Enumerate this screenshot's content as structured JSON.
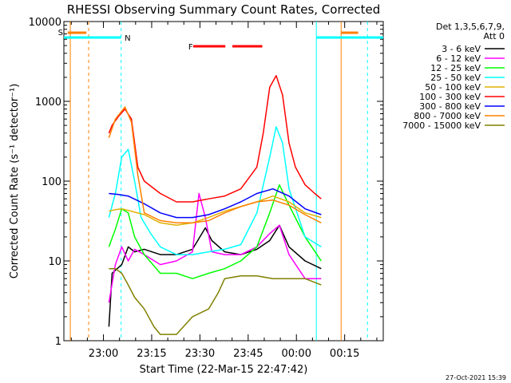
{
  "chart_data": {
    "type": "line",
    "title": "RHESSI Observing Summary Count Rates, Corrected",
    "xlabel": "Start Time (22-Mar-15 22:47:42)",
    "ylabel": "Corrected Count Rate (s⁻¹ detector⁻¹)",
    "y_scale": "log",
    "ylim": [
      1,
      10000
    ],
    "xlim": [
      "22:47:42",
      "00:27:00"
    ],
    "x_ticks": [
      "23:00",
      "23:15",
      "23:30",
      "23:45",
      "00:00",
      "00:15"
    ],
    "y_ticks": [
      "1",
      "10",
      "100",
      "1000",
      "10000"
    ],
    "x_tick_minutes": [
      12.3,
      27.3,
      42.3,
      57.3,
      72.3,
      87.3
    ],
    "legend": {
      "position": "right",
      "header": [
        "Det 1,3,5,6,7,9,",
        "Att 0"
      ],
      "entries": [
        {
          "name": "3 - 6 keV",
          "color": "#000000"
        },
        {
          "name": "6 - 12 keV",
          "color": "#ff00ff"
        },
        {
          "name": "12 - 25 keV",
          "color": "#00ff00"
        },
        {
          "name": "25 - 50 keV",
          "color": "#00ffff"
        },
        {
          "name": "50 - 100 keV",
          "color": "#e0b000"
        },
        {
          "name": "100 - 300 keV",
          "color": "#ff0000"
        },
        {
          "name": "300 - 800 keV",
          "color": "#0000ff"
        },
        {
          "name": "800 - 7000 keV",
          "color": "#ff8000"
        },
        {
          "name": "7000 - 15000 keV",
          "color": "#808000"
        }
      ]
    },
    "flags": [
      {
        "label": "S",
        "color": "#ff8000"
      },
      {
        "label": "N",
        "color": "#00ffff"
      },
      {
        "label": "F",
        "color": "#ff0000"
      }
    ],
    "series": [
      {
        "name": "3 - 6 keV",
        "color": "#000000",
        "points": [
          [
            14,
            1.5
          ],
          [
            15,
            7
          ],
          [
            18,
            9
          ],
          [
            20,
            15
          ],
          [
            22,
            13
          ],
          [
            25,
            14
          ],
          [
            30,
            12
          ],
          [
            35,
            12
          ],
          [
            40,
            14
          ],
          [
            44,
            26
          ],
          [
            46,
            18
          ],
          [
            50,
            13
          ],
          [
            55,
            12
          ],
          [
            60,
            14
          ],
          [
            64,
            18
          ],
          [
            67,
            28
          ],
          [
            70,
            15
          ],
          [
            75,
            10
          ],
          [
            80,
            8
          ]
        ]
      },
      {
        "name": "6 - 12 keV",
        "color": "#ff00ff",
        "points": [
          [
            14,
            3
          ],
          [
            16,
            9
          ],
          [
            18,
            15
          ],
          [
            20,
            10
          ],
          [
            22,
            14
          ],
          [
            25,
            12
          ],
          [
            30,
            9
          ],
          [
            35,
            10
          ],
          [
            40,
            13
          ],
          [
            42,
            70
          ],
          [
            44,
            35
          ],
          [
            46,
            13
          ],
          [
            50,
            12
          ],
          [
            55,
            12
          ],
          [
            60,
            15
          ],
          [
            64,
            22
          ],
          [
            67,
            28
          ],
          [
            70,
            12
          ],
          [
            75,
            6
          ],
          [
            80,
            6
          ]
        ]
      },
      {
        "name": "12 - 25 keV",
        "color": "#00ff00",
        "points": [
          [
            14,
            15
          ],
          [
            16,
            25
          ],
          [
            18,
            45
          ],
          [
            20,
            40
          ],
          [
            22,
            20
          ],
          [
            25,
            12
          ],
          [
            30,
            7
          ],
          [
            35,
            7
          ],
          [
            40,
            6
          ],
          [
            45,
            7
          ],
          [
            50,
            8
          ],
          [
            55,
            10
          ],
          [
            60,
            15
          ],
          [
            64,
            40
          ],
          [
            67,
            90
          ],
          [
            70,
            50
          ],
          [
            75,
            20
          ],
          [
            80,
            10
          ]
        ]
      },
      {
        "name": "25 - 50 keV",
        "color": "#00ffff",
        "points": [
          [
            14,
            35
          ],
          [
            16,
            70
          ],
          [
            18,
            200
          ],
          [
            20,
            250
          ],
          [
            22,
            100
          ],
          [
            24,
            35
          ],
          [
            27,
            22
          ],
          [
            30,
            15
          ],
          [
            35,
            12
          ],
          [
            40,
            12
          ],
          [
            45,
            13
          ],
          [
            50,
            14
          ],
          [
            55,
            16
          ],
          [
            60,
            40
          ],
          [
            64,
            200
          ],
          [
            66,
            480
          ],
          [
            68,
            300
          ],
          [
            70,
            80
          ],
          [
            75,
            20
          ],
          [
            80,
            15
          ]
        ]
      },
      {
        "name": "50 - 100 keV",
        "color": "#e0b000",
        "points": [
          [
            14,
            42
          ],
          [
            16,
            44
          ],
          [
            18,
            45
          ],
          [
            20,
            43
          ],
          [
            25,
            38
          ],
          [
            30,
            30
          ],
          [
            35,
            28
          ],
          [
            40,
            30
          ],
          [
            45,
            35
          ],
          [
            50,
            42
          ],
          [
            55,
            48
          ],
          [
            60,
            55
          ],
          [
            65,
            65
          ],
          [
            70,
            55
          ],
          [
            75,
            40
          ],
          [
            80,
            35
          ]
        ]
      },
      {
        "name": "100 - 300 keV",
        "color": "#ff0000",
        "points": [
          [
            14,
            400
          ],
          [
            15,
            500
          ],
          [
            17,
            650
          ],
          [
            19,
            800
          ],
          [
            21,
            600
          ],
          [
            23,
            150
          ],
          [
            25,
            100
          ],
          [
            30,
            70
          ],
          [
            35,
            55
          ],
          [
            40,
            55
          ],
          [
            45,
            60
          ],
          [
            50,
            65
          ],
          [
            55,
            80
          ],
          [
            60,
            150
          ],
          [
            62,
            400
          ],
          [
            64,
            1500
          ],
          [
            66,
            2100
          ],
          [
            68,
            1200
          ],
          [
            70,
            300
          ],
          [
            72,
            150
          ],
          [
            75,
            90
          ],
          [
            78,
            70
          ],
          [
            80,
            60
          ]
        ]
      },
      {
        "name": "300 - 800 keV",
        "color": "#0000ff",
        "points": [
          [
            14,
            70
          ],
          [
            17,
            68
          ],
          [
            20,
            65
          ],
          [
            25,
            52
          ],
          [
            30,
            40
          ],
          [
            35,
            35
          ],
          [
            40,
            35
          ],
          [
            45,
            38
          ],
          [
            50,
            45
          ],
          [
            55,
            55
          ],
          [
            60,
            70
          ],
          [
            65,
            80
          ],
          [
            70,
            65
          ],
          [
            75,
            45
          ],
          [
            80,
            38
          ]
        ]
      },
      {
        "name": "800 - 7000 keV",
        "color": "#ff8000",
        "points": [
          [
            14,
            350
          ],
          [
            16,
            600
          ],
          [
            19,
            850
          ],
          [
            21,
            550
          ],
          [
            23,
            120
          ],
          [
            25,
            40
          ],
          [
            30,
            32
          ],
          [
            35,
            30
          ],
          [
            40,
            30
          ],
          [
            45,
            32
          ],
          [
            50,
            40
          ],
          [
            55,
            48
          ],
          [
            60,
            55
          ],
          [
            65,
            58
          ],
          [
            70,
            50
          ],
          [
            75,
            38
          ],
          [
            80,
            30
          ]
        ]
      },
      {
        "name": "7000 - 15000 keV",
        "color": "#808000",
        "points": [
          [
            14,
            8
          ],
          [
            16,
            8
          ],
          [
            18,
            7
          ],
          [
            20,
            5
          ],
          [
            22,
            3.5
          ],
          [
            25,
            2.5
          ],
          [
            28,
            1.5
          ],
          [
            30,
            1.2
          ],
          [
            35,
            1.2
          ],
          [
            40,
            2
          ],
          [
            45,
            2.5
          ],
          [
            48,
            4
          ],
          [
            50,
            6
          ],
          [
            55,
            6.5
          ],
          [
            60,
            6.5
          ],
          [
            65,
            6
          ],
          [
            70,
            6
          ],
          [
            75,
            6
          ],
          [
            80,
            5
          ]
        ]
      }
    ]
  },
  "footer": {
    "timestamp": "27-Oct-2021 15:39"
  }
}
